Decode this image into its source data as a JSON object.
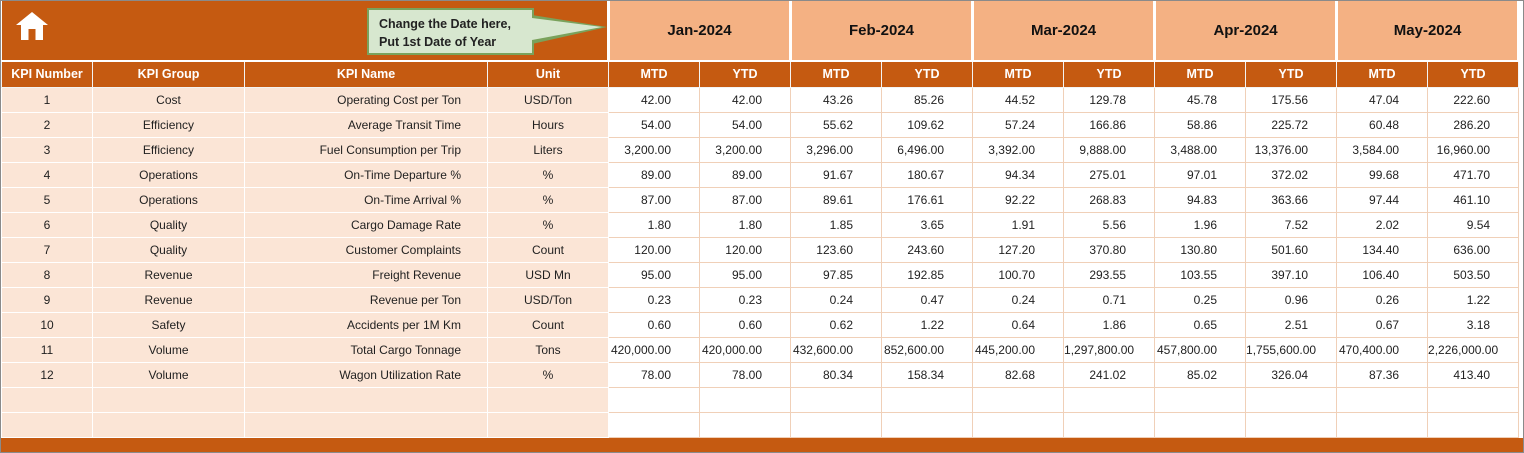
{
  "callout": {
    "line1": "Change the Date here,",
    "line2": "Put 1st Date of Year"
  },
  "table": {
    "left_headers": [
      "KPI Number",
      "KPI Group",
      "KPI Name",
      "Unit"
    ],
    "months": [
      "Jan-2024",
      "Feb-2024",
      "Mar-2024",
      "Apr-2024",
      "May-2024"
    ],
    "sub_headers": [
      "MTD",
      "YTD"
    ],
    "empty_row_count": 2,
    "rows": [
      {
        "num": "1",
        "group": "Cost",
        "name": "Operating Cost per Ton",
        "unit": "USD/Ton",
        "values": [
          "42.00",
          "42.00",
          "43.26",
          "85.26",
          "44.52",
          "129.78",
          "45.78",
          "175.56",
          "47.04",
          "222.60"
        ]
      },
      {
        "num": "2",
        "group": "Efficiency",
        "name": "Average Transit Time",
        "unit": "Hours",
        "values": [
          "54.00",
          "54.00",
          "55.62",
          "109.62",
          "57.24",
          "166.86",
          "58.86",
          "225.72",
          "60.48",
          "286.20"
        ]
      },
      {
        "num": "3",
        "group": "Efficiency",
        "name": "Fuel Consumption per Trip",
        "unit": "Liters",
        "values": [
          "3,200.00",
          "3,200.00",
          "3,296.00",
          "6,496.00",
          "3,392.00",
          "9,888.00",
          "3,488.00",
          "13,376.00",
          "3,584.00",
          "16,960.00"
        ]
      },
      {
        "num": "4",
        "group": "Operations",
        "name": "On-Time Departure %",
        "unit": "%",
        "values": [
          "89.00",
          "89.00",
          "91.67",
          "180.67",
          "94.34",
          "275.01",
          "97.01",
          "372.02",
          "99.68",
          "471.70"
        ]
      },
      {
        "num": "5",
        "group": "Operations",
        "name": "On-Time Arrival %",
        "unit": "%",
        "values": [
          "87.00",
          "87.00",
          "89.61",
          "176.61",
          "92.22",
          "268.83",
          "94.83",
          "363.66",
          "97.44",
          "461.10"
        ]
      },
      {
        "num": "6",
        "group": "Quality",
        "name": "Cargo Damage Rate",
        "unit": "%",
        "values": [
          "1.80",
          "1.80",
          "1.85",
          "3.65",
          "1.91",
          "5.56",
          "1.96",
          "7.52",
          "2.02",
          "9.54"
        ]
      },
      {
        "num": "7",
        "group": "Quality",
        "name": "Customer Complaints",
        "unit": "Count",
        "values": [
          "120.00",
          "120.00",
          "123.60",
          "243.60",
          "127.20",
          "370.80",
          "130.80",
          "501.60",
          "134.40",
          "636.00"
        ]
      },
      {
        "num": "8",
        "group": "Revenue",
        "name": "Freight Revenue",
        "unit": "USD Mn",
        "values": [
          "95.00",
          "95.00",
          "97.85",
          "192.85",
          "100.70",
          "293.55",
          "103.55",
          "397.10",
          "106.40",
          "503.50"
        ]
      },
      {
        "num": "9",
        "group": "Revenue",
        "name": "Revenue per Ton",
        "unit": "USD/Ton",
        "values": [
          "0.23",
          "0.23",
          "0.24",
          "0.47",
          "0.24",
          "0.71",
          "0.25",
          "0.96",
          "0.26",
          "1.22"
        ]
      },
      {
        "num": "10",
        "group": "Safety",
        "name": "Accidents per 1M Km",
        "unit": "Count",
        "values": [
          "0.60",
          "0.60",
          "0.62",
          "1.22",
          "0.64",
          "1.86",
          "0.65",
          "2.51",
          "0.67",
          "3.18"
        ]
      },
      {
        "num": "11",
        "group": "Volume",
        "name": "Total Cargo Tonnage",
        "unit": "Tons",
        "values": [
          "420,000.00",
          "420,000.00",
          "432,600.00",
          "852,600.00",
          "445,200.00",
          "1,297,800.00",
          "457,800.00",
          "1,755,600.00",
          "470,400.00",
          "2,226,000.00"
        ]
      },
      {
        "num": "12",
        "group": "Volume",
        "name": "Wagon Utilization Rate",
        "unit": "%",
        "values": [
          "78.00",
          "78.00",
          "80.34",
          "158.34",
          "82.68",
          "241.02",
          "85.02",
          "326.04",
          "87.36",
          "413.40"
        ]
      }
    ]
  },
  "colors": {
    "header_dark": "#C55A11",
    "month_header_bg": "#F4B183",
    "left_cells_bg": "#FBE5D6",
    "grid_line": "#F0D0B8",
    "callout_bg": "#D7E7CF",
    "callout_border": "#7AA25C"
  }
}
